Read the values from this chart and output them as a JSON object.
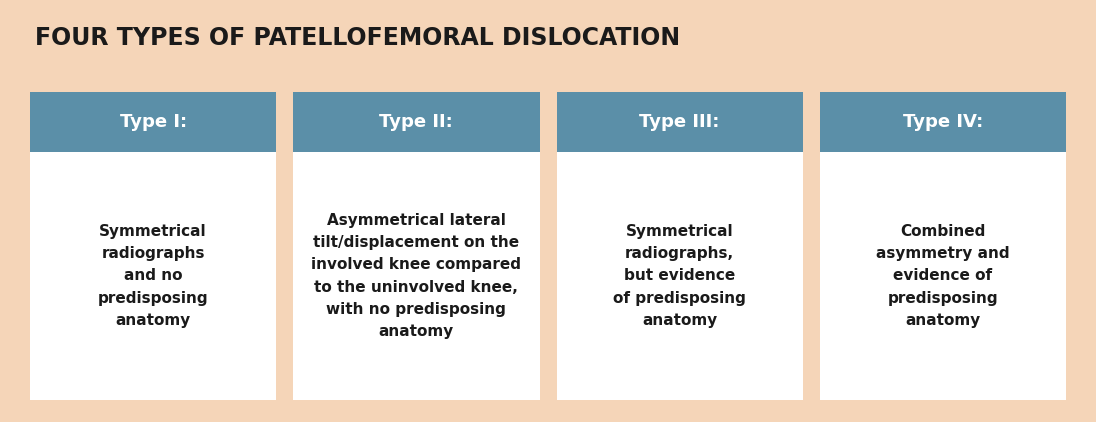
{
  "title": "FOUR TYPES OF PATELLOFEMORAL DISLOCATION",
  "background_color": "#f5d5b8",
  "header_bg_color": "#5b8fa8",
  "header_text_color": "#ffffff",
  "body_bg_color": "#ffffff",
  "body_text_color": "#1a1a1a",
  "title_color": "#1a1a1a",
  "types": [
    "Type I:",
    "Type II:",
    "Type III:",
    "Type IV:"
  ],
  "descriptions": [
    "Symmetrical\nradiographs\nand no\npredisposing\nanatomy",
    "Asymmetrical lateral\ntilt/displacement on the\ninvolved knee compared\nto the uninvolved knee,\nwith no predisposing\nanatomy",
    "Symmetrical\nradiographs,\nbut evidence\nof predisposing\nanatomy",
    "Combined\nasymmetry and\nevidence of\npredisposing\nanatomy"
  ],
  "fig_width": 10.96,
  "fig_height": 4.22,
  "dpi": 100
}
